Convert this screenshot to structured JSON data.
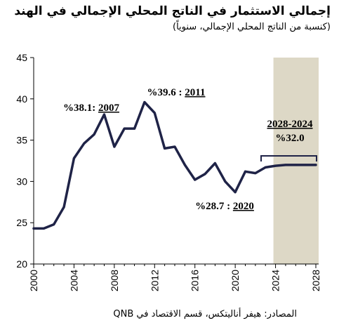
{
  "title": "إجمالي الاستثمار في الناتج المحلي الإجمالي في الهند",
  "subtitle": "(كنسبة من الناتج المحلي الإجمالي، سنوياً)",
  "source": "المصادر: هيفر أناليتكس، قسم الاقتصاد في QNB",
  "colors": {
    "line": "#1f2347",
    "shade": "#ddd8c6",
    "axis": "#000000"
  },
  "chart_data": {
    "type": "line",
    "x": [
      2000,
      2001,
      2002,
      2003,
      2004,
      2005,
      2006,
      2007,
      2008,
      2009,
      2010,
      2011,
      2012,
      2013,
      2014,
      2015,
      2016,
      2017,
      2018,
      2019,
      2020,
      2021,
      2022,
      2023,
      2024,
      2025,
      2026,
      2027,
      2028
    ],
    "series": [
      {
        "values": [
          24.3,
          24.3,
          24.8,
          26.9,
          32.8,
          34.6,
          35.7,
          38.1,
          34.2,
          36.4,
          36.4,
          39.6,
          38.3,
          34.0,
          34.2,
          32.0,
          30.2,
          30.9,
          32.2,
          30.0,
          28.7,
          31.2,
          31.0,
          31.7,
          31.9,
          32.0,
          32.0,
          32.0,
          32.0
        ]
      }
    ],
    "xticks": [
      2000,
      2004,
      2008,
      2012,
      2016,
      2020,
      2024,
      2028
    ],
    "yticks": [
      20,
      25,
      30,
      35,
      40,
      45
    ],
    "xlim": [
      2000,
      2028
    ],
    "ylim": [
      20,
      45
    ],
    "shaded_range": [
      2024,
      2028
    ],
    "annotations": [
      {
        "year": "2007",
        "value": "%38.1:"
      },
      {
        "year": "2011",
        "value": "%39.6 :"
      },
      {
        "year": "2020",
        "value": "%28.7 :"
      },
      {
        "year": "2028-2024",
        "value": "%32.0"
      }
    ]
  }
}
